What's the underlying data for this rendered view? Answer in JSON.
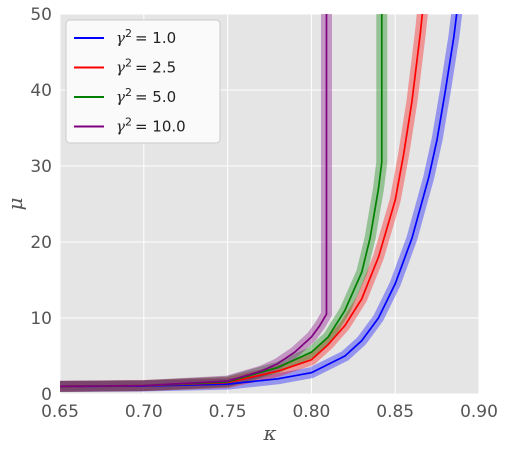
{
  "chart_data": {
    "type": "line",
    "title": "",
    "xlabel": "κ",
    "ylabel": "μ",
    "xlim": [
      0.65,
      0.9
    ],
    "ylim": [
      0,
      50
    ],
    "xticks": [
      "0.65",
      "0.70",
      "0.75",
      "0.80",
      "0.85",
      "0.90"
    ],
    "yticks": [
      "0",
      "10",
      "20",
      "30",
      "40",
      "50"
    ],
    "grid": true,
    "legend_position": "top-left",
    "background": "#e5e5e5",
    "series": [
      {
        "name": "γ² = 1.0",
        "name_var": "γ",
        "name_exp": "2",
        "name_value": "= 1.0",
        "color": "#0000ff",
        "band": 0.35,
        "x": [
          0.65,
          0.7,
          0.75,
          0.78,
          0.8,
          0.82,
          0.83,
          0.84,
          0.85,
          0.86,
          0.87,
          0.875,
          0.88,
          0.885,
          0.89
        ],
        "y": [
          1.0,
          1.05,
          1.3,
          2.0,
          2.8,
          5.0,
          7.0,
          10.0,
          14.5,
          20.5,
          28.5,
          33.5,
          40.0,
          47.0,
          56.0
        ]
      },
      {
        "name": "γ² = 2.5",
        "name_var": "γ",
        "name_exp": "2",
        "name_value": "= 2.5",
        "color": "#ff0000",
        "band": 0.35,
        "x": [
          0.65,
          0.7,
          0.75,
          0.78,
          0.8,
          0.81,
          0.82,
          0.83,
          0.84,
          0.85,
          0.855,
          0.86,
          0.865,
          0.87
        ],
        "y": [
          1.0,
          1.1,
          1.5,
          3.0,
          4.5,
          6.5,
          9.0,
          12.5,
          18.0,
          25.5,
          31.5,
          38.5,
          47.5,
          58.0
        ]
      },
      {
        "name": "γ² = 5.0",
        "name_var": "γ",
        "name_exp": "2",
        "name_value": "= 5.0",
        "color": "#008000",
        "band": 0.35,
        "x": [
          0.65,
          0.7,
          0.75,
          0.78,
          0.8,
          0.81,
          0.82,
          0.83,
          0.835,
          0.84,
          0.842,
          0.842,
          0.842
        ],
        "y": [
          1.0,
          1.1,
          1.6,
          3.5,
          5.5,
          7.5,
          11.0,
          16.0,
          20.5,
          27.0,
          30.5,
          45.0,
          53.0
        ]
      },
      {
        "name": "γ² = 10.0",
        "name_var": "γ",
        "name_exp": "2",
        "name_value": "= 10.0",
        "color": "#800080",
        "band": 0.35,
        "x": [
          0.65,
          0.7,
          0.75,
          0.77,
          0.78,
          0.79,
          0.8,
          0.805,
          0.809,
          0.809,
          0.809
        ],
        "y": [
          1.0,
          1.1,
          1.7,
          3.0,
          4.0,
          5.5,
          7.5,
          9.0,
          10.5,
          30.0,
          53.0
        ]
      }
    ]
  }
}
